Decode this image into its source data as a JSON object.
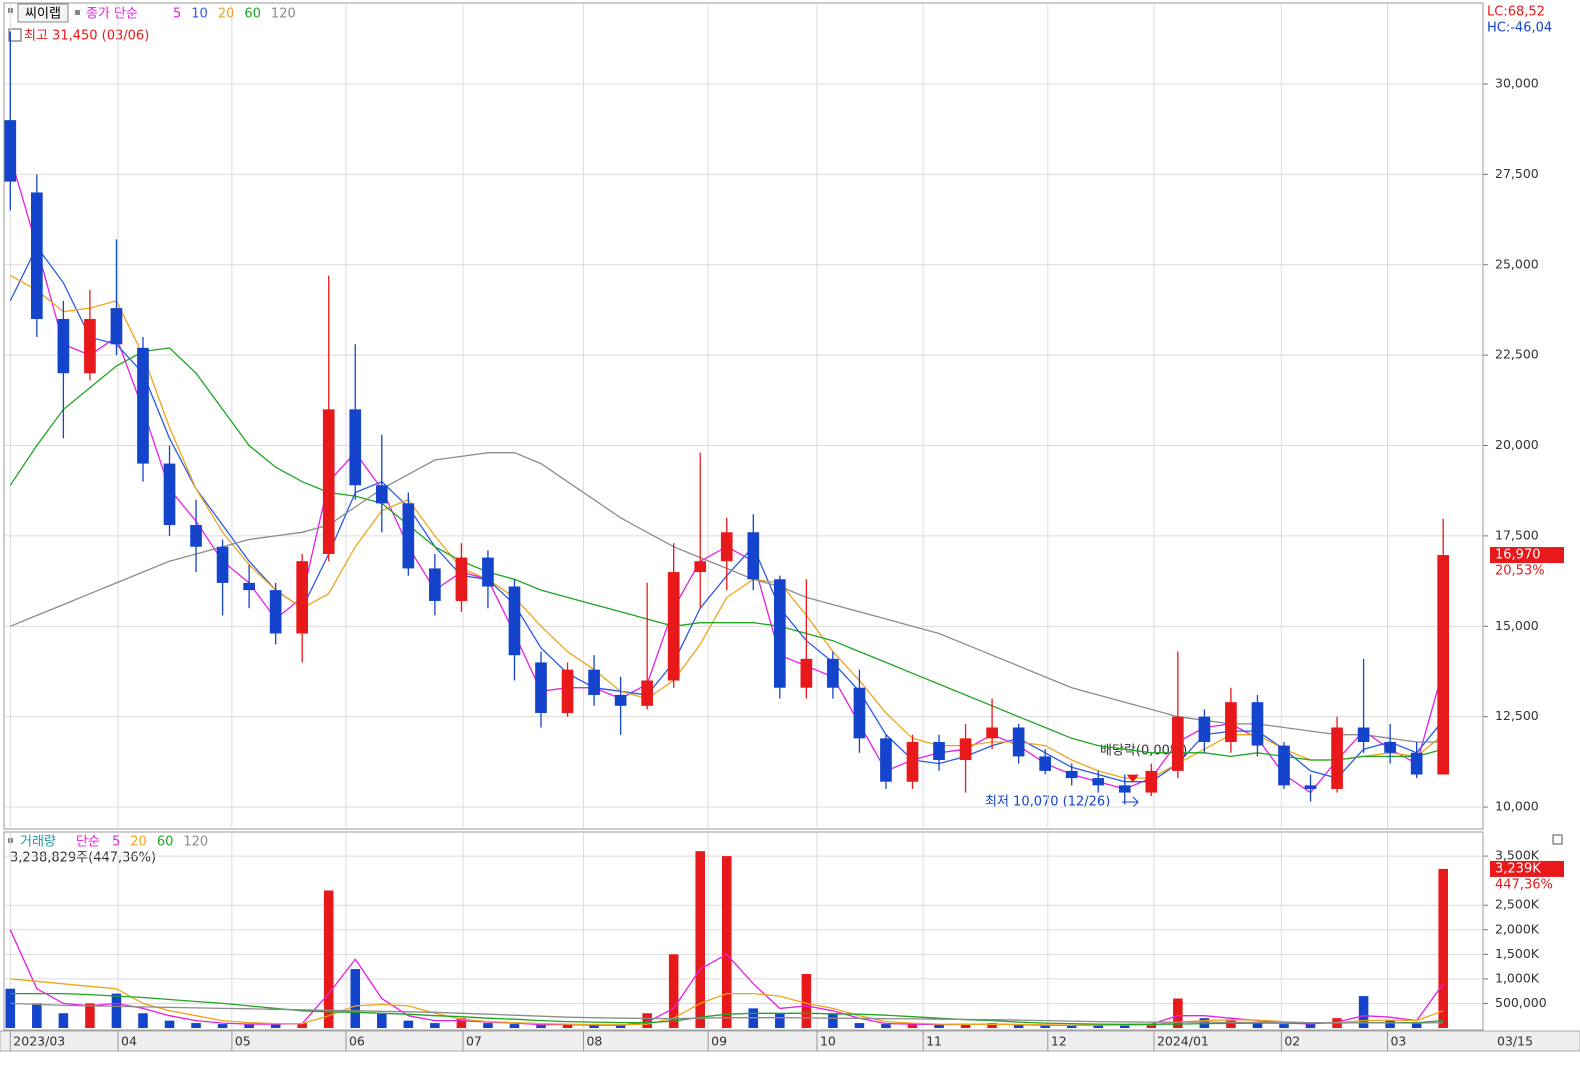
{
  "chart_data": [
    {
      "type": "candlestick",
      "title": "씨이랩",
      "legend_label": "종가 단순",
      "high_label": "최고 31,450 (03/06)",
      "low_label": "최저 10,070 (12/26)",
      "dividend_label": "배당락(0,00%)",
      "lc_label": "LC:68,52",
      "hc_label": "HC:-46,04",
      "last_price_label": "16,970",
      "last_change_label": "20,53%",
      "up_color": "#e8191b",
      "down_color": "#1443cc",
      "grid": true,
      "xlim": [
        -0.2,
        55.5
      ],
      "ylim": [
        9420,
        32185
      ],
      "yticks": [
        {
          "value": 10000,
          "label": "10,000"
        },
        {
          "value": 12500,
          "label": "12,500"
        },
        {
          "value": 15000,
          "label": "15,000"
        },
        {
          "value": 17500,
          "label": "17,500"
        },
        {
          "value": 20000,
          "label": "20,000"
        },
        {
          "value": 22500,
          "label": "22,500"
        },
        {
          "value": 25000,
          "label": "25,000"
        },
        {
          "value": 27500,
          "label": "27,500"
        },
        {
          "value": 30000,
          "label": "30,000"
        }
      ],
      "open": [
        29000,
        27000,
        23500,
        22000,
        23800,
        22700,
        19500,
        17800,
        17200,
        16200,
        16000,
        14800,
        17000,
        21000,
        18900,
        18400,
        16600,
        15700,
        16900,
        16100,
        14000,
        12600,
        13800,
        13100,
        12800,
        13500,
        16500,
        16800,
        17600,
        16300,
        13300,
        14100,
        13300,
        11900,
        10700,
        11800,
        11300,
        11900,
        12200,
        11400,
        11000,
        10800,
        10600,
        10400,
        11000,
        12500,
        11800,
        12900,
        11700,
        10600,
        10500,
        12200,
        11800,
        11500,
        10900
      ],
      "high": [
        31450,
        27500,
        24000,
        24300,
        25700,
        23000,
        20000,
        18500,
        17400,
        16700,
        16200,
        17000,
        24700,
        22800,
        20300,
        18700,
        17000,
        17300,
        17100,
        16300,
        14300,
        14000,
        14200,
        13600,
        16200,
        17300,
        19800,
        18000,
        18100,
        16400,
        16300,
        14300,
        13800,
        12000,
        12000,
        12000,
        12300,
        13000,
        12300,
        11600,
        11200,
        11000,
        10900,
        11200,
        14300,
        12700,
        13300,
        13100,
        11800,
        10900,
        12500,
        14100,
        12300,
        11800,
        17970
      ],
      "low": [
        26500,
        23000,
        20200,
        21800,
        22500,
        19000,
        17500,
        16500,
        15300,
        15500,
        14500,
        14000,
        16800,
        18500,
        17600,
        16400,
        15300,
        15400,
        15500,
        13500,
        12200,
        12500,
        12800,
        12000,
        12700,
        13300,
        15500,
        16000,
        16000,
        13000,
        13000,
        13000,
        11500,
        10500,
        10500,
        11000,
        10400,
        11600,
        11200,
        10900,
        10600,
        10400,
        10070,
        10300,
        10800,
        11500,
        11500,
        11400,
        10500,
        10150,
        10400,
        11500,
        11200,
        10800,
        10900
      ],
      "close": [
        27300,
        23500,
        22000,
        23500,
        22800,
        19500,
        17800,
        17200,
        16200,
        16000,
        14800,
        16800,
        21000,
        18900,
        18400,
        16600,
        15700,
        16900,
        16100,
        14200,
        12600,
        13800,
        13100,
        12800,
        13500,
        16500,
        16800,
        17600,
        16300,
        13300,
        14100,
        13300,
        11900,
        10700,
        11800,
        11300,
        11900,
        12200,
        11400,
        11000,
        10800,
        10600,
        10400,
        11000,
        12500,
        11800,
        12900,
        11700,
        10600,
        10500,
        12200,
        11800,
        11500,
        10900,
        16970
      ],
      "series": [
        {
          "name": "5",
          "color": "#e61ee6",
          "values": [
            28000,
            25500,
            22800,
            22500,
            23000,
            21000,
            18800,
            17900,
            16800,
            16200,
            15200,
            15800,
            19000,
            19800,
            18800,
            17200,
            16000,
            16500,
            16300,
            14800,
            13200,
            13300,
            13300,
            13000,
            13400,
            15500,
            16800,
            17200,
            16800,
            14200,
            13900,
            13600,
            12300,
            11000,
            11300,
            11500,
            11600,
            12000,
            11700,
            11200,
            10900,
            10700,
            10500,
            10800,
            11800,
            12200,
            12300,
            11900,
            10900,
            10400,
            11300,
            12100,
            11600,
            11200,
            13800
          ]
        },
        {
          "name": "10",
          "color": "#2a5ae8",
          "values": [
            24000,
            25500,
            24500,
            23000,
            22800,
            22000,
            20200,
            18800,
            17800,
            16800,
            16000,
            15500,
            17000,
            18700,
            19000,
            18300,
            17200,
            16400,
            16300,
            15600,
            14400,
            13700,
            13300,
            13200,
            13100,
            14000,
            15500,
            16400,
            17200,
            15500,
            14600,
            14000,
            13200,
            12000,
            11300,
            11200,
            11400,
            11700,
            11900,
            11500,
            11100,
            10900,
            10700,
            10700,
            11200,
            12000,
            12100,
            12100,
            11600,
            11000,
            10800,
            11600,
            11800,
            11500,
            12400
          ]
        },
        {
          "name": "20",
          "color": "#eea51a",
          "values": [
            24700,
            24300,
            23700,
            23800,
            24000,
            22500,
            20500,
            18800,
            17600,
            16700,
            16000,
            15500,
            15900,
            17200,
            18200,
            18500,
            17500,
            16600,
            16300,
            15800,
            15000,
            14300,
            13800,
            13200,
            13000,
            13500,
            14500,
            15800,
            16300,
            16200,
            15300,
            14300,
            13500,
            12600,
            11900,
            11700,
            11700,
            11800,
            11800,
            11700,
            11300,
            11000,
            10800,
            10800,
            11200,
            11600,
            12000,
            12000,
            11600,
            11300,
            11300,
            11400,
            11500,
            11400,
            12000
          ]
        },
        {
          "name": "60",
          "color": "#1fa51f",
          "values": [
            18900,
            20000,
            21000,
            21600,
            22200,
            22600,
            22700,
            22000,
            21000,
            20000,
            19400,
            19000,
            18700,
            18600,
            18400,
            17800,
            17200,
            16800,
            16500,
            16300,
            16000,
            15800,
            15600,
            15400,
            15200,
            15000,
            15100,
            15100,
            15100,
            15000,
            14800,
            14600,
            14300,
            14000,
            13700,
            13400,
            13100,
            12800,
            12500,
            12200,
            11900,
            11700,
            11600,
            11500,
            11500,
            11500,
            11400,
            11500,
            11400,
            11300,
            11300,
            11400,
            11400,
            11400,
            11600
          ]
        },
        {
          "name": "120",
          "color": "#8c8c8c",
          "values": [
            15000,
            15300,
            15600,
            15900,
            16200,
            16500,
            16800,
            17000,
            17200,
            17400,
            17500,
            17600,
            17800,
            18300,
            18800,
            19200,
            19600,
            19700,
            19800,
            19800,
            19500,
            19000,
            18500,
            18000,
            17600,
            17200,
            16900,
            16600,
            16300,
            16100,
            15800,
            15600,
            15400,
            15200,
            15000,
            14800,
            14500,
            14200,
            13900,
            13600,
            13300,
            13100,
            12900,
            12700,
            12500,
            12400,
            12300,
            12300,
            12200,
            12100,
            12000,
            12000,
            11900,
            11800,
            11800
          ]
        }
      ]
    },
    {
      "type": "bar",
      "title": "거래량",
      "legend_label": "단순",
      "summary_label": "3,238,829주(447,36%)",
      "last_value_label": "3,239K",
      "last_ratio_label": "447,36%",
      "end_date_label": "03/15",
      "grid": true,
      "xlim": [
        -0.2,
        55.5
      ],
      "xticks": [
        {
          "value": 0,
          "label": "2023/03"
        },
        {
          "value": 4.06,
          "label": "04"
        },
        {
          "value": 8.35,
          "label": "05"
        },
        {
          "value": 12.65,
          "label": "06"
        },
        {
          "value": 17.06,
          "label": "07"
        },
        {
          "value": 21.6,
          "label": "08"
        },
        {
          "value": 26.3,
          "label": "09"
        },
        {
          "value": 30.4,
          "label": "10"
        },
        {
          "value": 34.4,
          "label": "11"
        },
        {
          "value": 39.1,
          "label": "12"
        },
        {
          "value": 43.1,
          "label": "2024/01"
        },
        {
          "value": 47.9,
          "label": "02"
        },
        {
          "value": 51.9,
          "label": "03"
        }
      ],
      "ylim": [
        0,
        3950000
      ],
      "yticks": [
        {
          "value": 500000,
          "label": "500,000"
        },
        {
          "value": 1000000,
          "label": "1,000K"
        },
        {
          "value": 1500000,
          "label": "1,500K"
        },
        {
          "value": 2000000,
          "label": "2,000K"
        },
        {
          "value": 2500000,
          "label": "2,500K"
        },
        {
          "value": 3500000,
          "label": "3,500K"
        }
      ],
      "values": [
        800000,
        500000,
        300000,
        500000,
        700000,
        300000,
        150000,
        100000,
        80000,
        70000,
        80000,
        100000,
        2800000,
        1200000,
        300000,
        150000,
        100000,
        200000,
        100000,
        80000,
        60000,
        80000,
        60000,
        50000,
        300000,
        1500000,
        3600000,
        3500000,
        400000,
        300000,
        1100000,
        300000,
        100000,
        80000,
        80000,
        60000,
        80000,
        100000,
        60000,
        50000,
        50000,
        60000,
        80000,
        80000,
        600000,
        200000,
        150000,
        100000,
        80000,
        80000,
        200000,
        650000,
        150000,
        100000,
        3238829
      ],
      "series": [
        {
          "name": "5",
          "color": "#e61ee6",
          "values": [
            2000000,
            800000,
            500000,
            450000,
            500000,
            400000,
            250000,
            150000,
            100000,
            80000,
            80000,
            90000,
            700000,
            1400000,
            600000,
            250000,
            150000,
            150000,
            120000,
            100000,
            70000,
            70000,
            60000,
            55000,
            120000,
            400000,
            1200000,
            1500000,
            900000,
            400000,
            450000,
            350000,
            200000,
            90000,
            80000,
            70000,
            75000,
            80000,
            70000,
            55000,
            55000,
            60000,
            70000,
            80000,
            250000,
            250000,
            200000,
            150000,
            100000,
            85000,
            120000,
            250000,
            220000,
            150000,
            900000
          ]
        },
        {
          "name": "20",
          "color": "#eea51a",
          "values": [
            1000000,
            950000,
            900000,
            850000,
            800000,
            500000,
            350000,
            250000,
            150000,
            110000,
            90000,
            90000,
            250000,
            450000,
            480000,
            450000,
            300000,
            180000,
            130000,
            110000,
            90000,
            80000,
            70000,
            65000,
            80000,
            200000,
            500000,
            700000,
            700000,
            650000,
            500000,
            400000,
            250000,
            130000,
            100000,
            80000,
            75000,
            75000,
            70000,
            65000,
            60000,
            60000,
            60000,
            65000,
            120000,
            150000,
            170000,
            160000,
            130000,
            110000,
            110000,
            150000,
            160000,
            150000,
            350000
          ]
        },
        {
          "name": "60",
          "color": "#1fa51f",
          "values": [
            700000,
            700000,
            700000,
            680000,
            650000,
            620000,
            580000,
            540000,
            500000,
            450000,
            400000,
            350000,
            330000,
            320000,
            300000,
            280000,
            250000,
            230000,
            200000,
            180000,
            150000,
            130000,
            120000,
            110000,
            110000,
            140000,
            220000,
            280000,
            300000,
            300000,
            300000,
            290000,
            280000,
            260000,
            230000,
            200000,
            170000,
            150000,
            120000,
            100000,
            90000,
            80000,
            75000,
            75000,
            80000,
            90000,
            95000,
            100000,
            100000,
            100000,
            100000,
            110000,
            110000,
            110000,
            150000
          ]
        },
        {
          "name": "120",
          "color": "#8c8c8c",
          "values": [
            500000,
            480000,
            460000,
            450000,
            440000,
            430000,
            420000,
            410000,
            400000,
            390000,
            380000,
            370000,
            360000,
            350000,
            340000,
            330000,
            320000,
            300000,
            280000,
            260000,
            240000,
            220000,
            210000,
            200000,
            195000,
            190000,
            200000,
            210000,
            210000,
            210000,
            205000,
            200000,
            195000,
            190000,
            185000,
            180000,
            175000,
            170000,
            160000,
            150000,
            140000,
            130000,
            125000,
            120000,
            120000,
            120000,
            115000,
            115000,
            110000,
            110000,
            105000,
            105000,
            105000,
            100000,
            110000
          ]
        }
      ]
    }
  ]
}
